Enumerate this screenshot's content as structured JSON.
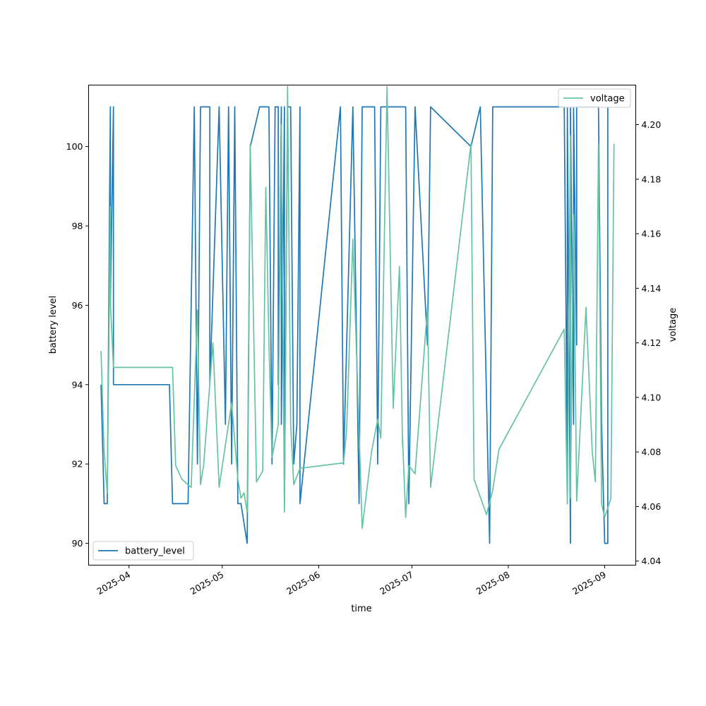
{
  "chart_data": {
    "type": "line",
    "xlabel": "time",
    "ylabel_left": "battery level",
    "ylabel_right": "voltage",
    "x_ticks": [
      "2025-04",
      "2025-05",
      "2025-06",
      "2025-07",
      "2025-08",
      "2025-09"
    ],
    "xlim": [
      "2025-03-19",
      "2025-09-11"
    ],
    "ylim_left": [
      89.45,
      101.55
    ],
    "ylim_right": [
      4.0385,
      4.2145
    ],
    "y_ticks_left": [
      "90",
      "92",
      "94",
      "96",
      "98",
      "100"
    ],
    "y_ticks_right": [
      "4.04",
      "4.06",
      "4.08",
      "4.10",
      "4.12",
      "4.14",
      "4.16",
      "4.18",
      "4.20"
    ],
    "grid": false,
    "series": [
      {
        "name": "battery_level",
        "axis": "left",
        "color": "#1f77b4",
        "legend": "lower-left",
        "points": [
          [
            "2025-03-23",
            94
          ],
          [
            "2025-03-24",
            91
          ],
          [
            "2025-03-25",
            91
          ],
          [
            "2025-03-26",
            101
          ],
          [
            "2025-03-26",
            96
          ],
          [
            "2025-03-27",
            101
          ],
          [
            "2025-03-27",
            94
          ],
          [
            "2025-04-14",
            94
          ],
          [
            "2025-04-15",
            91
          ],
          [
            "2025-04-20",
            91
          ],
          [
            "2025-04-22",
            101
          ],
          [
            "2025-04-23",
            92
          ],
          [
            "2025-04-24",
            101
          ],
          [
            "2025-04-27",
            101
          ],
          [
            "2025-04-27",
            94
          ],
          [
            "2025-04-30",
            101
          ],
          [
            "2025-05-02",
            93
          ],
          [
            "2025-05-03",
            101
          ],
          [
            "2025-05-04",
            92
          ],
          [
            "2025-05-05",
            101
          ],
          [
            "2025-05-06",
            91
          ],
          [
            "2025-05-07",
            91
          ],
          [
            "2025-05-09",
            90
          ],
          [
            "2025-05-10",
            100
          ],
          [
            "2025-05-13",
            101
          ],
          [
            "2025-05-16",
            101
          ],
          [
            "2025-05-17",
            92
          ],
          [
            "2025-05-18",
            101
          ],
          [
            "2025-05-19",
            101
          ],
          [
            "2025-05-19",
            94
          ],
          [
            "2025-05-20",
            101
          ],
          [
            "2025-05-20",
            93
          ],
          [
            "2025-05-21",
            101
          ],
          [
            "2025-05-21",
            91
          ],
          [
            "2025-05-22",
            101
          ],
          [
            "2025-05-23",
            101
          ],
          [
            "2025-05-24",
            92
          ],
          [
            "2025-05-25",
            93
          ],
          [
            "2025-05-26",
            101
          ],
          [
            "2025-05-26",
            91
          ],
          [
            "2025-06-08",
            101
          ],
          [
            "2025-06-09",
            92
          ],
          [
            "2025-06-12",
            101
          ],
          [
            "2025-06-14",
            91
          ],
          [
            "2025-06-15",
            101
          ],
          [
            "2025-06-19",
            101
          ],
          [
            "2025-06-20",
            92
          ],
          [
            "2025-06-21",
            101
          ],
          [
            "2025-06-28",
            101
          ],
          [
            "2025-06-29",
            101
          ],
          [
            "2025-06-30",
            91
          ],
          [
            "2025-07-02",
            101
          ],
          [
            "2025-07-06",
            95
          ],
          [
            "2025-07-07",
            101
          ],
          [
            "2025-07-20",
            100
          ],
          [
            "2025-07-23",
            101
          ],
          [
            "2025-07-26",
            90
          ],
          [
            "2025-07-27",
            101
          ],
          [
            "2025-08-19",
            101
          ],
          [
            "2025-08-20",
            92
          ],
          [
            "2025-08-20",
            101
          ],
          [
            "2025-08-21",
            90
          ],
          [
            "2025-08-21",
            101
          ],
          [
            "2025-08-22",
            93
          ],
          [
            "2025-08-22",
            101
          ],
          [
            "2025-08-23",
            95
          ],
          [
            "2025-08-23",
            101
          ],
          [
            "2025-08-30",
            101
          ],
          [
            "2025-08-31",
            93
          ],
          [
            "2025-09-01",
            90
          ],
          [
            "2025-09-02",
            90
          ],
          [
            "2025-09-02",
            101
          ]
        ]
      },
      {
        "name": "voltage",
        "axis": "right",
        "color": "#66c2a5",
        "legend": "top-right",
        "points": [
          [
            "2025-03-23",
            4.117
          ],
          [
            "2025-03-24",
            4.08
          ],
          [
            "2025-03-25",
            4.065
          ],
          [
            "2025-03-26",
            4.17
          ],
          [
            "2025-03-26",
            4.135
          ],
          [
            "2025-03-27",
            4.111
          ],
          [
            "2025-04-15",
            4.111
          ],
          [
            "2025-04-16",
            4.075
          ],
          [
            "2025-04-18",
            4.07
          ],
          [
            "2025-04-21",
            4.067
          ],
          [
            "2025-04-23",
            4.132
          ],
          [
            "2025-04-24",
            4.068
          ],
          [
            "2025-04-25",
            4.075
          ],
          [
            "2025-04-28",
            4.12
          ],
          [
            "2025-04-30",
            4.067
          ],
          [
            "2025-05-04",
            4.098
          ],
          [
            "2025-05-06",
            4.07
          ],
          [
            "2025-05-07",
            4.063
          ],
          [
            "2025-05-08",
            4.065
          ],
          [
            "2025-05-09",
            4.058
          ],
          [
            "2025-05-10",
            4.193
          ],
          [
            "2025-05-12",
            4.069
          ],
          [
            "2025-05-14",
            4.073
          ],
          [
            "2025-05-15",
            4.177
          ],
          [
            "2025-05-16",
            4.12
          ],
          [
            "2025-05-17",
            4.078
          ],
          [
            "2025-05-19",
            4.09
          ],
          [
            "2025-05-20",
            4.2
          ],
          [
            "2025-05-21",
            4.058
          ],
          [
            "2025-05-22",
            4.214
          ],
          [
            "2025-05-23",
            4.09
          ],
          [
            "2025-05-24",
            4.068
          ],
          [
            "2025-05-26",
            4.074
          ],
          [
            "2025-06-09",
            4.076
          ],
          [
            "2025-06-10",
            4.088
          ],
          [
            "2025-06-12",
            4.158
          ],
          [
            "2025-06-15",
            4.052
          ],
          [
            "2025-06-18",
            4.08
          ],
          [
            "2025-06-20",
            4.092
          ],
          [
            "2025-06-21",
            4.085
          ],
          [
            "2025-06-23",
            4.214
          ],
          [
            "2025-06-25",
            4.096
          ],
          [
            "2025-06-27",
            4.148
          ],
          [
            "2025-06-28",
            4.082
          ],
          [
            "2025-06-28",
            4.085
          ],
          [
            "2025-06-29",
            4.056
          ],
          [
            "2025-06-30",
            4.075
          ],
          [
            "2025-07-02",
            4.072
          ],
          [
            "2025-07-06",
            4.133
          ],
          [
            "2025-07-07",
            4.067
          ],
          [
            "2025-07-20",
            4.193
          ],
          [
            "2025-07-21",
            4.07
          ],
          [
            "2025-07-25",
            4.057
          ],
          [
            "2025-07-27",
            4.066
          ],
          [
            "2025-07-29",
            4.081
          ],
          [
            "2025-08-19",
            4.125
          ],
          [
            "2025-08-20",
            4.061
          ],
          [
            "2025-08-21",
            4.196
          ],
          [
            "2025-08-21",
            4.063
          ],
          [
            "2025-08-22",
            4.167
          ],
          [
            "2025-08-23",
            4.062
          ],
          [
            "2025-08-26",
            4.133
          ],
          [
            "2025-08-28",
            4.08
          ],
          [
            "2025-08-29",
            4.069
          ],
          [
            "2025-08-30",
            4.193
          ],
          [
            "2025-08-31",
            4.061
          ],
          [
            "2025-09-01",
            4.056
          ],
          [
            "2025-09-03",
            4.063
          ],
          [
            "2025-09-04",
            4.193
          ]
        ]
      }
    ]
  }
}
